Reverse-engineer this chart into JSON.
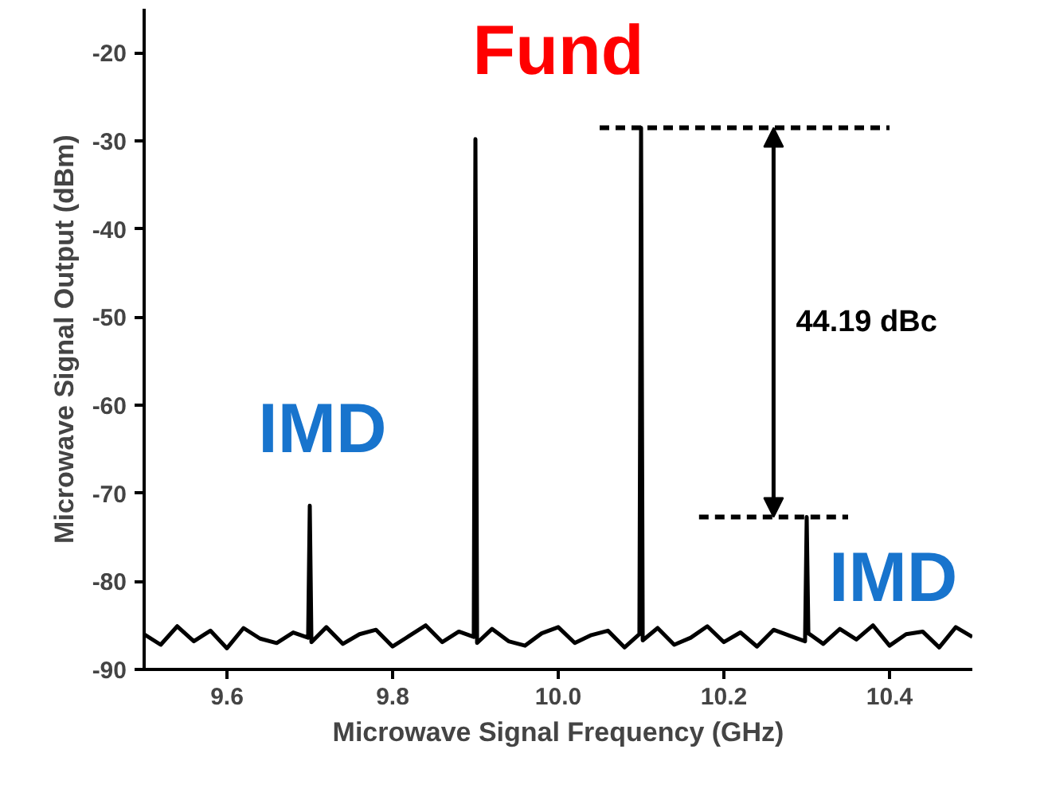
{
  "chart_data": {
    "type": "line",
    "xlabel": "Microwave Signal Frequency (GHz)",
    "ylabel": "Microwave Signal Output (dBm)",
    "xlim": [
      9.5,
      10.5
    ],
    "xticks": [
      9.6,
      9.8,
      {
        "value": 10.0,
        "label": "10.0"
      },
      10.2,
      10.4
    ],
    "ylim": [
      -90,
      -15
    ],
    "yticks": [
      -90,
      -80,
      -70,
      -60,
      -50,
      -40,
      -30,
      -20
    ],
    "grid": false,
    "marker": "none",
    "series": [
      {
        "color": "#000000",
        "line_style": "solid",
        "x": [
          9.5,
          9.52,
          9.54,
          9.56,
          9.58,
          9.6,
          9.62,
          9.64,
          9.66,
          9.68,
          9.698,
          9.7,
          9.702,
          9.72,
          9.74,
          9.76,
          9.78,
          9.8,
          9.82,
          9.84,
          9.86,
          9.88,
          9.898,
          9.9,
          9.902,
          9.92,
          9.94,
          9.96,
          9.98,
          10.0,
          10.02,
          10.04,
          10.06,
          10.08,
          10.098,
          10.1,
          10.102,
          10.12,
          10.14,
          10.16,
          10.18,
          10.2,
          10.22,
          10.24,
          10.26,
          10.28,
          10.298,
          10.3,
          10.302,
          10.32,
          10.34,
          10.36,
          10.38,
          10.4,
          10.42,
          10.44,
          10.46,
          10.48,
          10.5
        ],
        "values": [
          -86.0,
          -87.2,
          -85.1,
          -86.8,
          -85.6,
          -87.6,
          -85.3,
          -86.5,
          -87.0,
          -85.8,
          -86.4,
          -71.4,
          -86.9,
          -85.2,
          -87.1,
          -86.0,
          -85.5,
          -87.4,
          -86.2,
          -85.0,
          -86.9,
          -85.7,
          -86.3,
          -29.8,
          -87.0,
          -85.4,
          -86.8,
          -87.3,
          -85.9,
          -85.2,
          -87.0,
          -86.1,
          -85.6,
          -87.5,
          -86.0,
          -28.5,
          -86.7,
          -85.3,
          -87.2,
          -86.4,
          -85.1,
          -86.9,
          -85.8,
          -87.4,
          -85.5,
          -86.2,
          -86.8,
          -72.7,
          -85.9,
          -87.1,
          -85.4,
          -86.6,
          -85.0,
          -87.3,
          -86.0,
          -85.7,
          -87.5,
          -85.2,
          -86.3
        ]
      },
      {
        "color": "#000000",
        "line_style": "dashed",
        "x": [
          10.05,
          10.4
        ],
        "values": [
          -28.5,
          -28.5
        ]
      },
      {
        "color": "#000000",
        "line_style": "dashed",
        "x": [
          10.17,
          10.35
        ],
        "values": [
          -72.7,
          -72.7
        ]
      }
    ],
    "annotations": [
      "Fund",
      "IMD",
      "IMD",
      "44.19 dBc"
    ]
  }
}
